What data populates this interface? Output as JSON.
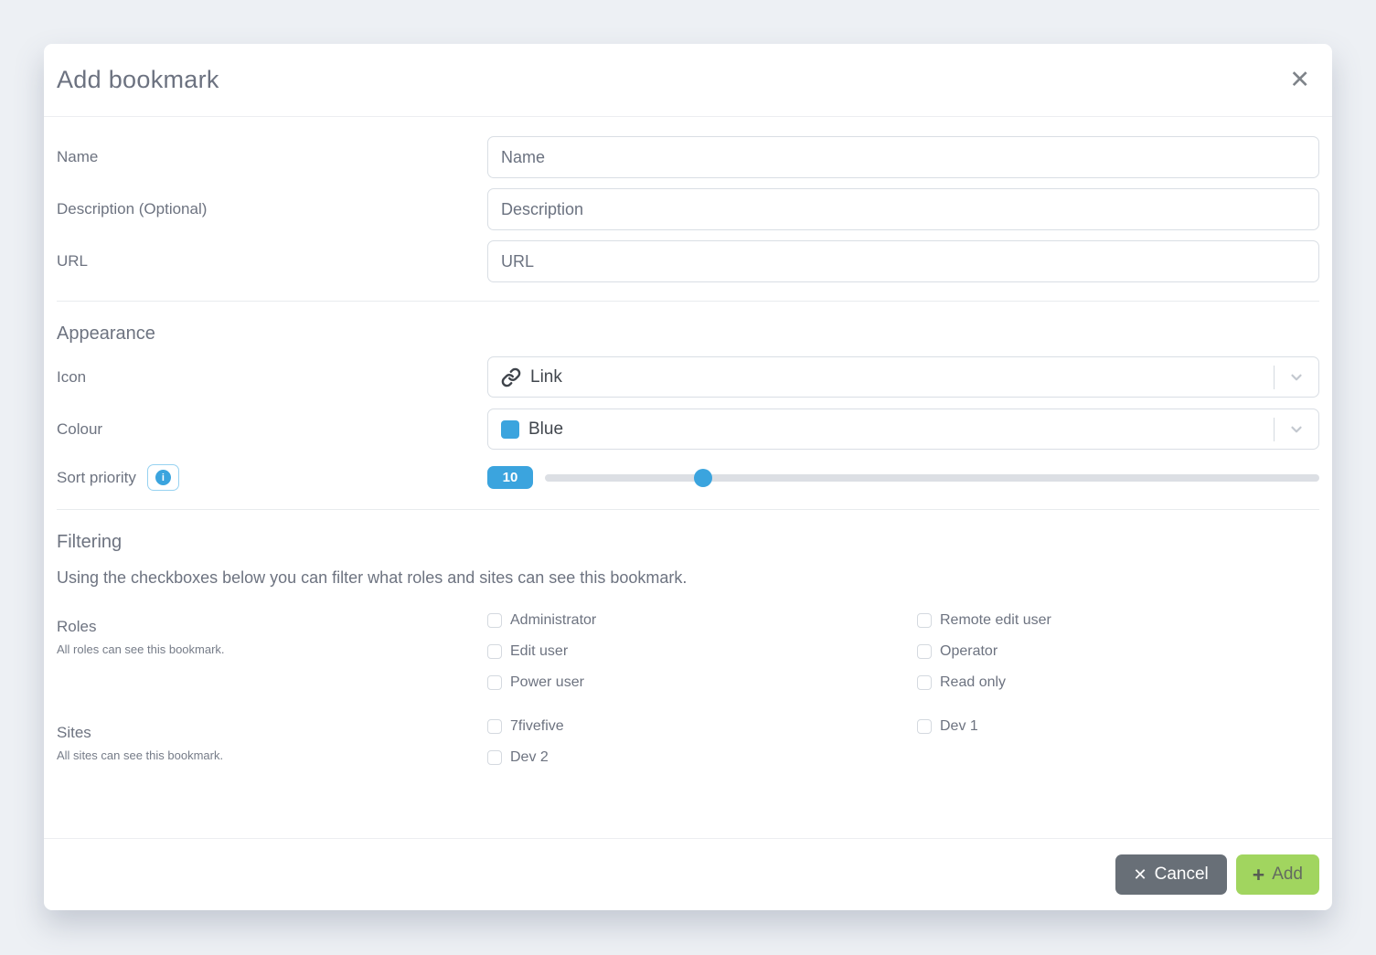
{
  "modal": {
    "title": "Add bookmark",
    "close_icon": "✕"
  },
  "form": {
    "name": {
      "label": "Name",
      "placeholder": "Name"
    },
    "description": {
      "label": "Description (Optional)",
      "placeholder": "Description"
    },
    "url": {
      "label": "URL",
      "placeholder": "URL"
    }
  },
  "appearance": {
    "heading": "Appearance",
    "icon_label": "Icon",
    "icon_value": "Link",
    "colour_label": "Colour",
    "colour_value": "Blue",
    "sort_label": "Sort priority",
    "sort_value": "10",
    "slider_percent": 20.4,
    "info_icon": "i"
  },
  "filtering": {
    "heading": "Filtering",
    "description": "Using the checkboxes below you can filter what roles and sites can see this bookmark.",
    "roles": {
      "label": "Roles",
      "subtext": "All roles can see this bookmark.",
      "col1": [
        "Administrator",
        "Edit user",
        "Power user"
      ],
      "col2": [
        "Remote edit user",
        "Operator",
        "Read only"
      ]
    },
    "sites": {
      "label": "Sites",
      "subtext": "All sites can see this bookmark.",
      "col1": [
        "7fivefive",
        "Dev 2"
      ],
      "col2": [
        "Dev 1"
      ]
    }
  },
  "footer": {
    "cancel_icon": "✕",
    "cancel_label": "Cancel",
    "add_icon": "+",
    "add_label": "Add"
  },
  "colors": {
    "accent_blue": "#3ba4de",
    "button_green": "#a1d55f",
    "button_gray": "#686f77",
    "page_background": "#edf0f4"
  }
}
